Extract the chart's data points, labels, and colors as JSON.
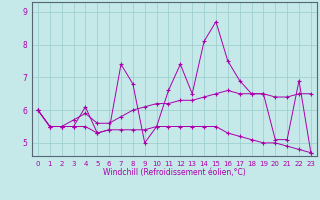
{
  "xlabel": "Windchill (Refroidissement éolien,°C)",
  "background_color": "#c5e8e8",
  "line_color": "#aa00aa",
  "grid_color": "#99cccc",
  "hours": [
    0,
    1,
    2,
    3,
    4,
    5,
    6,
    7,
    8,
    9,
    10,
    11,
    12,
    13,
    14,
    15,
    16,
    17,
    18,
    19,
    20,
    21,
    22,
    23
  ],
  "series1": [
    6.0,
    5.5,
    5.5,
    5.5,
    6.1,
    5.3,
    5.4,
    7.4,
    6.8,
    5.0,
    5.5,
    6.6,
    7.4,
    6.5,
    8.1,
    8.7,
    7.5,
    6.9,
    6.5,
    6.5,
    5.1,
    5.1,
    6.9,
    4.7
  ],
  "series2": [
    6.0,
    5.5,
    5.5,
    5.5,
    5.5,
    5.3,
    5.4,
    5.4,
    5.4,
    5.4,
    5.5,
    5.5,
    5.5,
    5.5,
    5.5,
    5.5,
    5.3,
    5.2,
    5.1,
    5.0,
    5.0,
    4.9,
    4.8,
    4.7
  ],
  "series3": [
    6.0,
    5.5,
    5.5,
    5.7,
    5.9,
    5.6,
    5.6,
    5.8,
    6.0,
    6.1,
    6.2,
    6.2,
    6.3,
    6.3,
    6.4,
    6.5,
    6.6,
    6.5,
    6.5,
    6.5,
    6.4,
    6.4,
    6.5,
    6.5
  ],
  "ylim": [
    4.6,
    9.3
  ],
  "yticks": [
    5,
    6,
    7,
    8,
    9
  ],
  "xticks": [
    0,
    1,
    2,
    3,
    4,
    5,
    6,
    7,
    8,
    9,
    10,
    11,
    12,
    13,
    14,
    15,
    16,
    17,
    18,
    19,
    20,
    21,
    22,
    23
  ],
  "tick_fontsize": 5,
  "xlabel_fontsize": 5.5
}
